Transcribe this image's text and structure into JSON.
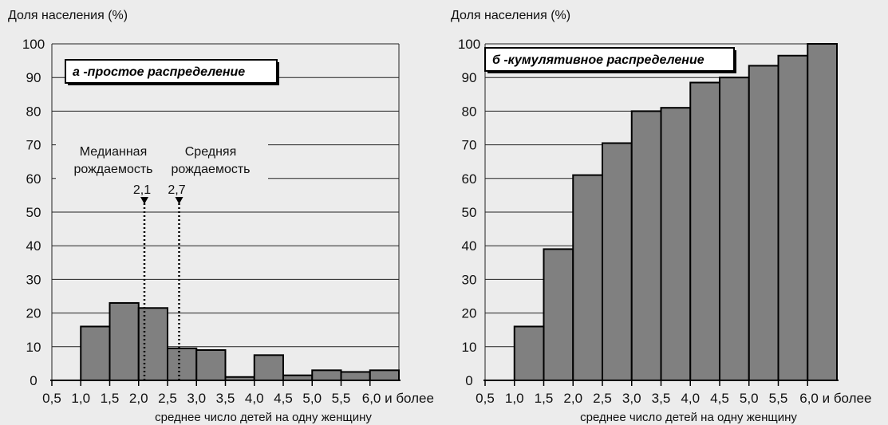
{
  "chart_data": [
    {
      "type": "bar",
      "panel_label": "а -простое распределение",
      "ylabel": "Доля населения (%)",
      "xlabel": "среднее число детей на одну женщину",
      "ylim": [
        0,
        100
      ],
      "yticks": [
        "0",
        "10",
        "20",
        "30",
        "40",
        "50",
        "60",
        "70",
        "80",
        "90",
        "100"
      ],
      "xticks": [
        "0,5",
        "1,0",
        "1,5",
        "2,0",
        "2,5",
        "3,0",
        "3,5",
        "4,0",
        "4,5",
        "5,0",
        "5,5",
        "6,0 и более"
      ],
      "bins": [
        {
          "from": 1.0,
          "to": 1.5,
          "value": 16
        },
        {
          "from": 1.5,
          "to": 2.0,
          "value": 23
        },
        {
          "from": 2.0,
          "to": 2.5,
          "value": 21.5
        },
        {
          "from": 2.5,
          "to": 3.0,
          "value": 9.5
        },
        {
          "from": 3.0,
          "to": 3.5,
          "value": 9
        },
        {
          "from": 3.5,
          "to": 4.0,
          "value": 1
        },
        {
          "from": 4.0,
          "to": 4.5,
          "value": 7.5
        },
        {
          "from": 4.5,
          "to": 5.0,
          "value": 1.5
        },
        {
          "from": 5.0,
          "to": 5.5,
          "value": 3
        },
        {
          "from": 5.5,
          "to": 6.0,
          "value": 2.5
        },
        {
          "from": 6.0,
          "to": 6.5,
          "value": 3
        }
      ],
      "grid": true,
      "annotations": [
        {
          "lines": [
            "Медианная",
            "рождаемость",
            "2,1"
          ],
          "x": 2.1
        },
        {
          "lines": [
            "Средняя",
            "рождаемость",
            "2,7"
          ],
          "x": 2.7
        }
      ],
      "bar_color": "#808080"
    },
    {
      "type": "bar",
      "panel_label": "б -кумулятивное распределение",
      "ylabel": "Доля населения (%)",
      "xlabel": "среднее число детей на одну женщину",
      "ylim": [
        0,
        100
      ],
      "yticks": [
        "0",
        "10",
        "20",
        "30",
        "40",
        "50",
        "60",
        "70",
        "80",
        "90",
        "100"
      ],
      "xticks": [
        "0,5",
        "1,0",
        "1,5",
        "2,0",
        "2,5",
        "3,0",
        "3,5",
        "4,0",
        "4,5",
        "5,0",
        "5,5",
        "6,0 и более"
      ],
      "bins": [
        {
          "from": 1.0,
          "to": 1.5,
          "value": 16
        },
        {
          "from": 1.5,
          "to": 2.0,
          "value": 39
        },
        {
          "from": 2.0,
          "to": 2.5,
          "value": 61
        },
        {
          "from": 2.5,
          "to": 3.0,
          "value": 70.5
        },
        {
          "from": 3.0,
          "to": 3.5,
          "value": 80
        },
        {
          "from": 3.5,
          "to": 4.0,
          "value": 81
        },
        {
          "from": 4.0,
          "to": 4.5,
          "value": 88.5
        },
        {
          "from": 4.5,
          "to": 5.0,
          "value": 90
        },
        {
          "from": 5.0,
          "to": 5.5,
          "value": 93.5
        },
        {
          "from": 5.5,
          "to": 6.0,
          "value": 96.5
        },
        {
          "from": 6.0,
          "to": 6.5,
          "value": 100
        }
      ],
      "grid": true,
      "annotations": [],
      "bar_color": "#808080"
    }
  ]
}
